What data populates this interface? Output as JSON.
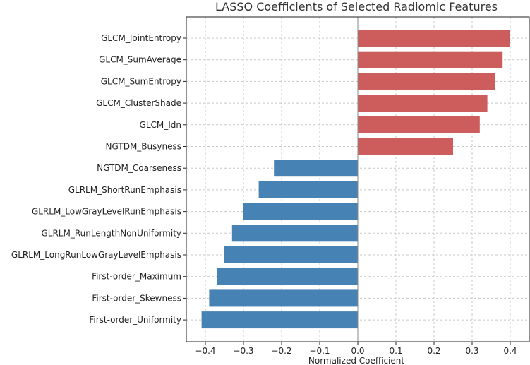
{
  "chart_data": {
    "type": "bar",
    "orientation": "horizontal",
    "title": "LASSO Coefficients of Selected Radiomic Features",
    "xlabel": "Normalized Coefficient",
    "ylabel": "",
    "xlim": [
      -0.45,
      0.45
    ],
    "xticks": [
      -0.4,
      -0.3,
      -0.2,
      -0.1,
      0.0,
      0.1,
      0.2,
      0.3,
      0.4
    ],
    "xtick_labels": [
      "−0.4",
      "−0.3",
      "−0.2",
      "−0.1",
      "0.0",
      "0.1",
      "0.2",
      "0.3",
      "0.4"
    ],
    "grid": true,
    "categories": [
      "GLCM_JointEntropy",
      "GLCM_SumAverage",
      "GLCM_SumEntropy",
      "GLCM_ClusterShade",
      "GLCM_Idn",
      "NGTDM_Busyness",
      "NGTDM_Coarseness",
      "GLRLM_ShortRunEmphasis",
      "GLRLM_LowGrayLevelRunEmphasis",
      "GLRLM_RunLengthNonUniformity",
      "GLRLM_LongRunLowGrayLevelEmphasis",
      "First-order_Maximum",
      "First-order_Skewness",
      "First-order_Uniformity"
    ],
    "values": [
      0.4,
      0.38,
      0.36,
      0.34,
      0.32,
      0.25,
      -0.22,
      -0.26,
      -0.3,
      -0.33,
      -0.35,
      -0.37,
      -0.39,
      -0.41
    ],
    "colors": {
      "positive": "#cd5c5c",
      "negative": "#4682b4"
    }
  }
}
